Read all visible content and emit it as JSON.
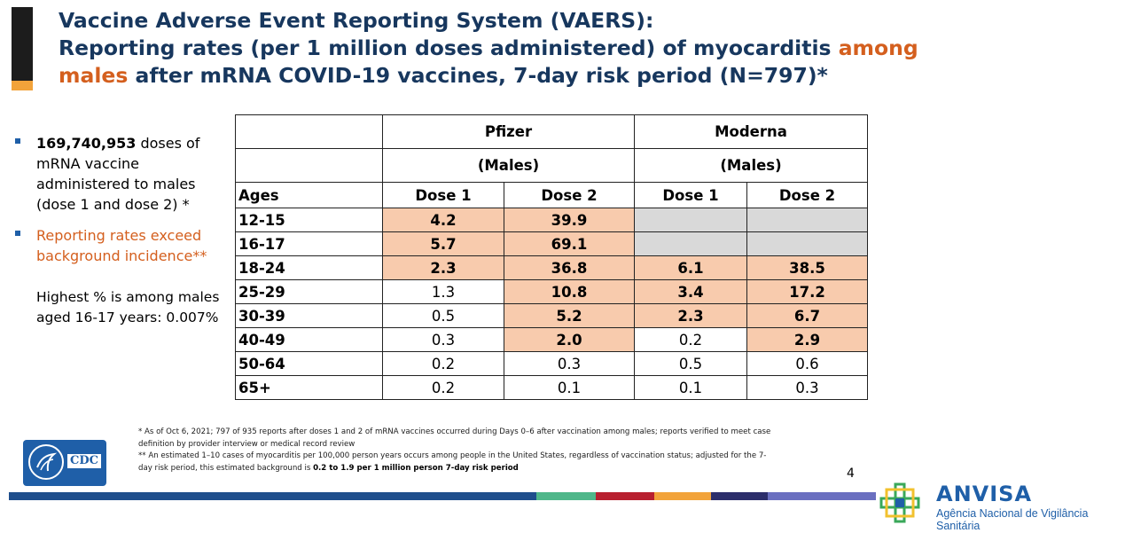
{
  "title": {
    "line1": "Vaccine Adverse Event Reporting System (VAERS):",
    "line2": "Reporting rates (per 1 million doses administered) of myocarditis ",
    "line2_highlight": "among",
    "line3_highlight": "males",
    "line3": " after mRNA COVID-19 vaccines, 7-day risk period (N=797)*"
  },
  "bullets": {
    "b1_bold": "169,740,953",
    "b1_text": " doses of mRNA vaccine administered to males (dose 1 and dose 2) *",
    "b2_text": "Reporting rates exceed background incidence**",
    "note": "Highest % is among males aged 16-17 years: 0.007%"
  },
  "table": {
    "brand1": "Pfizer",
    "brand2": "Moderna",
    "sub1": "(Males)",
    "sub2": "(Males)",
    "ages_label": "Ages",
    "dose_labels": [
      "Dose 1",
      "Dose 2",
      "Dose 1",
      "Dose 2"
    ],
    "rows": [
      {
        "age": "12-15",
        "cells": [
          {
            "v": "4.2",
            "bold": true,
            "hl": "peach"
          },
          {
            "v": "39.9",
            "bold": true,
            "hl": "peach"
          },
          {
            "v": "",
            "bold": false,
            "hl": "gray"
          },
          {
            "v": "",
            "bold": false,
            "hl": "gray"
          }
        ]
      },
      {
        "age": "16-17",
        "cells": [
          {
            "v": "5.7",
            "bold": true,
            "hl": "peach"
          },
          {
            "v": "69.1",
            "bold": true,
            "hl": "peach"
          },
          {
            "v": "",
            "bold": false,
            "hl": "gray"
          },
          {
            "v": "",
            "bold": false,
            "hl": "gray"
          }
        ]
      },
      {
        "age": "18-24",
        "cells": [
          {
            "v": "2.3",
            "bold": true,
            "hl": "peach"
          },
          {
            "v": "36.8",
            "bold": true,
            "hl": "peach"
          },
          {
            "v": "6.1",
            "bold": true,
            "hl": "peach"
          },
          {
            "v": "38.5",
            "bold": true,
            "hl": "peach"
          }
        ]
      },
      {
        "age": "25-29",
        "cells": [
          {
            "v": "1.3",
            "bold": false,
            "hl": "none"
          },
          {
            "v": "10.8",
            "bold": true,
            "hl": "peach"
          },
          {
            "v": "3.4",
            "bold": true,
            "hl": "peach"
          },
          {
            "v": "17.2",
            "bold": true,
            "hl": "peach"
          }
        ]
      },
      {
        "age": "30-39",
        "cells": [
          {
            "v": "0.5",
            "bold": false,
            "hl": "none"
          },
          {
            "v": "5.2",
            "bold": true,
            "hl": "peach"
          },
          {
            "v": "2.3",
            "bold": true,
            "hl": "peach"
          },
          {
            "v": "6.7",
            "bold": true,
            "hl": "peach"
          }
        ]
      },
      {
        "age": "40-49",
        "cells": [
          {
            "v": "0.3",
            "bold": false,
            "hl": "none"
          },
          {
            "v": "2.0",
            "bold": true,
            "hl": "peach"
          },
          {
            "v": "0.2",
            "bold": false,
            "hl": "none"
          },
          {
            "v": "2.9",
            "bold": true,
            "hl": "peach"
          }
        ]
      },
      {
        "age": "50-64",
        "cells": [
          {
            "v": "0.2",
            "bold": false,
            "hl": "none"
          },
          {
            "v": "0.3",
            "bold": false,
            "hl": "none"
          },
          {
            "v": "0.5",
            "bold": false,
            "hl": "none"
          },
          {
            "v": "0.6",
            "bold": false,
            "hl": "none"
          }
        ]
      },
      {
        "age": "65+",
        "cells": [
          {
            "v": "0.2",
            "bold": false,
            "hl": "none"
          },
          {
            "v": "0.1",
            "bold": false,
            "hl": "none"
          },
          {
            "v": "0.1",
            "bold": false,
            "hl": "none"
          },
          {
            "v": "0.3",
            "bold": false,
            "hl": "none"
          }
        ]
      }
    ]
  },
  "footnotes": {
    "f1": "* As of Oct 6, 2021; 797 of 935 reports after doses 1 and 2 of mRNA vaccines occurred during Days 0–6 after vaccination among males; reports verified to meet case definition by provider interview or medical record review",
    "f2": "** An estimated 1–10 cases of myocarditis per 100,000 person years occurs among people in the United States, regardless of vaccination status; adjusted for the 7-day risk period, this estimated background is ",
    "f2_bold": "0.2 to 1.9 per 1 million person 7-day risk period"
  },
  "page_number": "4",
  "cdc_logo_text": "CDC",
  "anvisa": {
    "name": "ANVISA",
    "subtitle": "Agência Nacional de Vigilância Sanitária"
  },
  "colors": {
    "title": "#17375e",
    "highlight": "#d45f1e",
    "peach": "#f8cbad",
    "gray": "#d9d9d9",
    "stripe": [
      "#1f4e8c",
      "#4fb78a",
      "#b8202f",
      "#f2a33a",
      "#2c2e6b",
      "#6a6fc0"
    ]
  }
}
